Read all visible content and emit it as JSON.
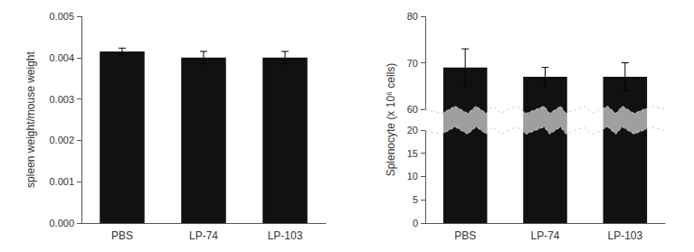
{
  "chart_data": [
    {
      "type": "bar",
      "categories": [
        "PBS",
        "LP-74",
        "LP-103"
      ],
      "values": [
        0.00415,
        0.004,
        0.004
      ],
      "errors": [
        8e-05,
        0.00015,
        0.00015
      ],
      "ylabel": "spleen weight/mouse weight",
      "ylim": [
        0,
        0.005
      ],
      "yticks": [
        {
          "value": 0,
          "label": "0.000"
        },
        0.001,
        0.002,
        0.003,
        0.004,
        0.005
      ],
      "color": "#111111",
      "grid": false
    },
    {
      "type": "bar",
      "categories": [
        "PBS",
        "LP-74",
        "LP-103"
      ],
      "values": [
        69,
        67,
        67
      ],
      "errors": [
        4.0,
        2.0,
        3.0
      ],
      "ylabel": "Splenocyte (x 10⁶ cells)",
      "ylim": [
        0,
        80
      ],
      "yticks": [
        0,
        5,
        10,
        15,
        20,
        60,
        70,
        80
      ],
      "color": "#111111",
      "grid": false
    }
  ]
}
